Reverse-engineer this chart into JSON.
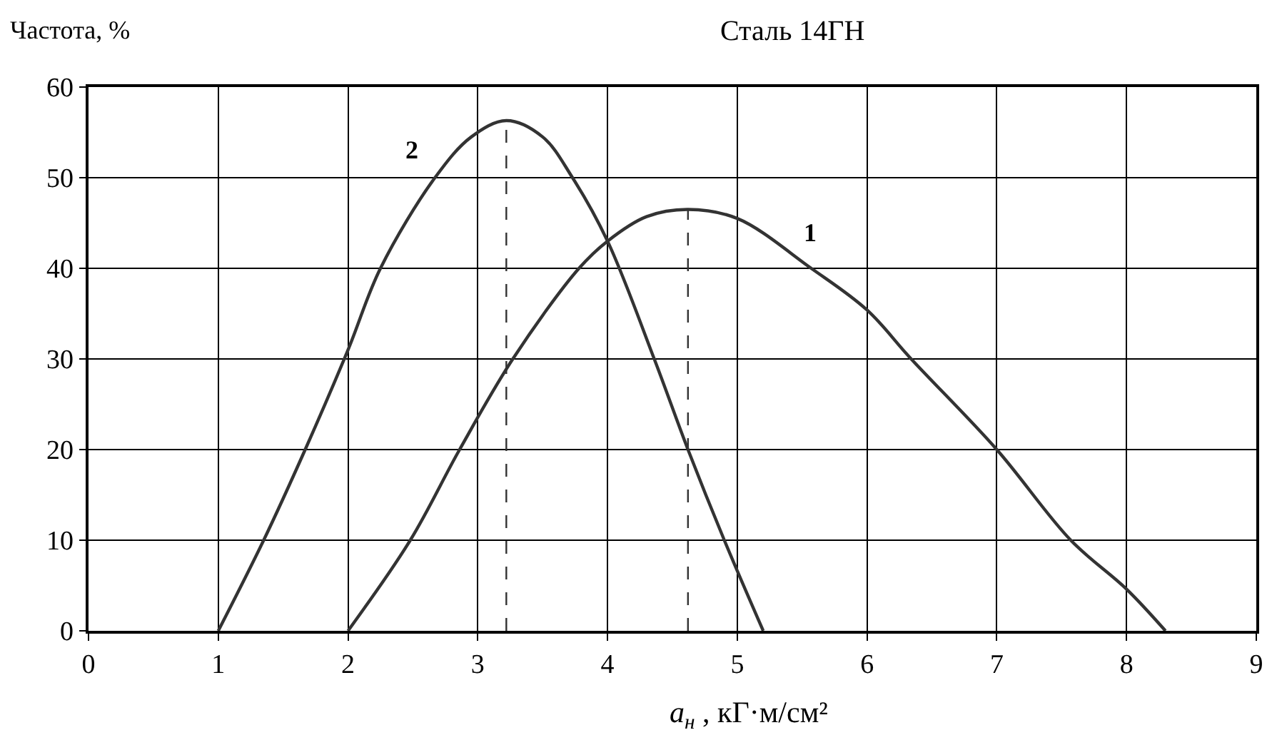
{
  "chart_data": {
    "type": "line",
    "title": "Сталь 14ГН",
    "xlabel": "a$_{н}$ , кГ·м/см²",
    "ylabel": "Частота, %",
    "xlim": [
      0,
      9
    ],
    "xticks": [
      0,
      1,
      2,
      3,
      4,
      5,
      6,
      7,
      8,
      9
    ],
    "ylim": [
      0,
      60
    ],
    "yticks": [
      0,
      10,
      20,
      30,
      40,
      50,
      60
    ],
    "grid": true,
    "legend": false,
    "marker": "none",
    "series": [
      {
        "name": "1",
        "color": "#333333",
        "x": [
          2,
          2.48,
          2.86,
          3.27,
          3.78,
          4.0,
          4.3,
          4.62,
          5.0,
          5.57,
          6.0,
          6.34,
          7.0,
          7.57,
          8.0,
          8.3
        ],
        "values": [
          0,
          10,
          20,
          30,
          40,
          43,
          45.7,
          46.5,
          45.5,
          40,
          35.4,
          30,
          20,
          10,
          4.6,
          0
        ]
      },
      {
        "name": "2",
        "color": "#333333",
        "x": [
          1,
          1.35,
          1.67,
          2.0,
          2.25,
          2.67,
          2.95,
          3.22,
          3.5,
          3.73,
          4.0,
          4.36,
          4.62,
          4.9,
          5.2
        ],
        "values": [
          0,
          10,
          20,
          31,
          40,
          50,
          54.5,
          56.3,
          54.5,
          50,
          43,
          30,
          20,
          10,
          0
        ]
      },
      {
        "color": "#333333",
        "line_style": "dashed",
        "x": [
          3.22,
          3.22
        ],
        "values": [
          0,
          56.3
        ]
      },
      {
        "color": "#333333",
        "line_style": "dashed",
        "x": [
          4.62,
          4.62
        ],
        "values": [
          0,
          46.5
        ]
      }
    ]
  }
}
